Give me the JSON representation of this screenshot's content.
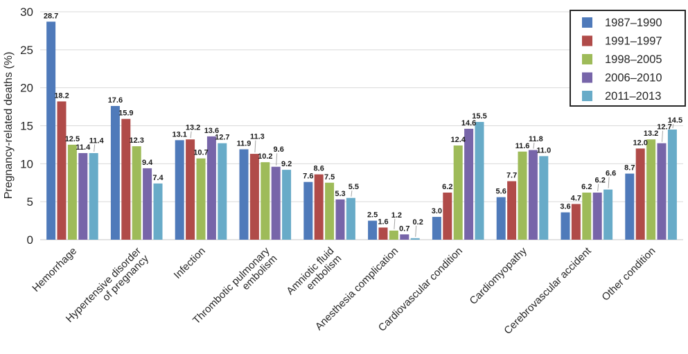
{
  "chart_data": {
    "type": "bar",
    "title": "",
    "xlabel": "",
    "ylabel": "Pregnancy-related deaths (%)",
    "ylim": [
      0,
      30
    ],
    "yticks": [
      0,
      5,
      10,
      15,
      20,
      25,
      30
    ],
    "grid": true,
    "legend_position": "top-right",
    "value_labels_shown": true,
    "value_label_decimals": 1,
    "categories": [
      [
        "Hemorrhage"
      ],
      [
        "Hypertensive disorder",
        "of pregnancy"
      ],
      [
        "Infection"
      ],
      [
        "Thrombotic pulmonary",
        "embolism"
      ],
      [
        "Amniotic fluid",
        "embolism"
      ],
      [
        "Anesthesia complication"
      ],
      [
        "Cardiovascular condition"
      ],
      [
        "Cardiomyopathy"
      ],
      [
        "Cerebrovascular accident"
      ],
      [
        "Other condition"
      ]
    ],
    "series": [
      {
        "name": "1987–1990",
        "color": "#4F7ABA",
        "values": [
          28.7,
          17.6,
          13.1,
          11.9,
          7.6,
          2.5,
          3.0,
          5.6,
          3.6,
          8.7
        ]
      },
      {
        "name": "1991–1997",
        "color": "#B04B49",
        "values": [
          18.2,
          15.9,
          13.2,
          11.3,
          8.6,
          1.6,
          6.2,
          7.7,
          4.7,
          12.0
        ]
      },
      {
        "name": "1998–2005",
        "color": "#9EBB59",
        "values": [
          12.5,
          12.3,
          10.7,
          10.2,
          7.5,
          1.2,
          12.4,
          11.6,
          6.2,
          13.2
        ]
      },
      {
        "name": "2006–2010",
        "color": "#7765A9",
        "values": [
          11.4,
          9.4,
          13.6,
          9.6,
          5.3,
          0.7,
          14.6,
          11.8,
          6.2,
          12.7
        ]
      },
      {
        "name": "2011–2013",
        "color": "#68ABC8",
        "values": [
          11.4,
          7.4,
          12.7,
          9.2,
          5.5,
          0.2,
          15.5,
          11.0,
          6.6,
          14.5
        ]
      }
    ],
    "style_colors": {
      "grid_line": "#D9D9D9",
      "axis_line": "#C6C6C6",
      "leader_line": "#A3A3A3",
      "text": "#262626",
      "legend_border": "#262626",
      "legend_fill": "#FFFFFF"
    }
  }
}
